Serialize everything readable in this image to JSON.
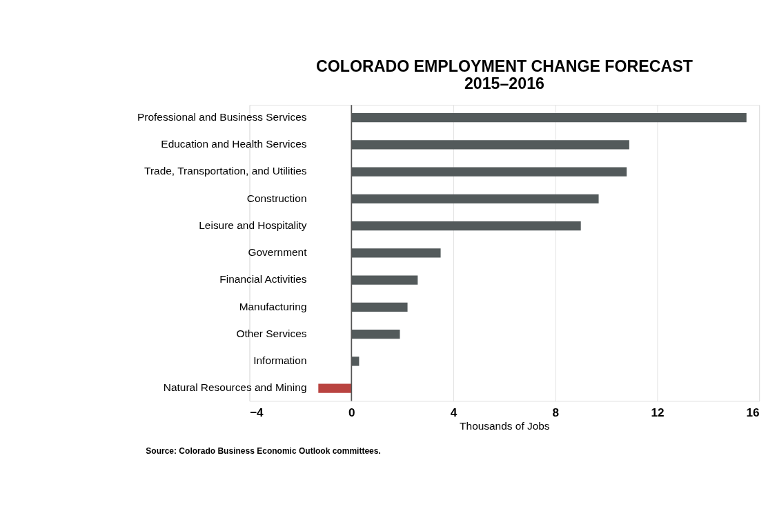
{
  "chart_data": {
    "type": "bar",
    "orientation": "horizontal",
    "title": [
      "COLORADO EMPLOYMENT CHANGE FORECAST",
      "2015–2016"
    ],
    "categories": [
      "Professional and Business Services",
      "Education and Health Services",
      "Trade, Transportation, and Utilities",
      "Construction",
      "Leisure and Hospitality",
      "Government",
      "Financial Activities",
      "Manufacturing",
      "Other Services",
      "Information",
      "Natural Resources and Mining"
    ],
    "values": [
      15.5,
      10.9,
      10.8,
      9.7,
      9.0,
      3.5,
      2.6,
      2.2,
      1.9,
      0.3,
      -1.3
    ],
    "colors": [
      "#535a5b",
      "#535a5b",
      "#535a5b",
      "#535a5b",
      "#535a5b",
      "#535a5b",
      "#535a5b",
      "#535a5b",
      "#535a5b",
      "#535a5b",
      "#b94340"
    ],
    "xlim": [
      -4,
      16
    ],
    "xticks": [
      -4,
      0,
      4,
      8,
      12,
      16
    ],
    "grid": "x",
    "xlabel": "Thousands of Jobs",
    "ref_lines": [
      {
        "axis": "x",
        "value": 0,
        "color": "#555555"
      }
    ],
    "annotations": [
      "Source: Colorado Business Economic Outlook committees."
    ]
  }
}
